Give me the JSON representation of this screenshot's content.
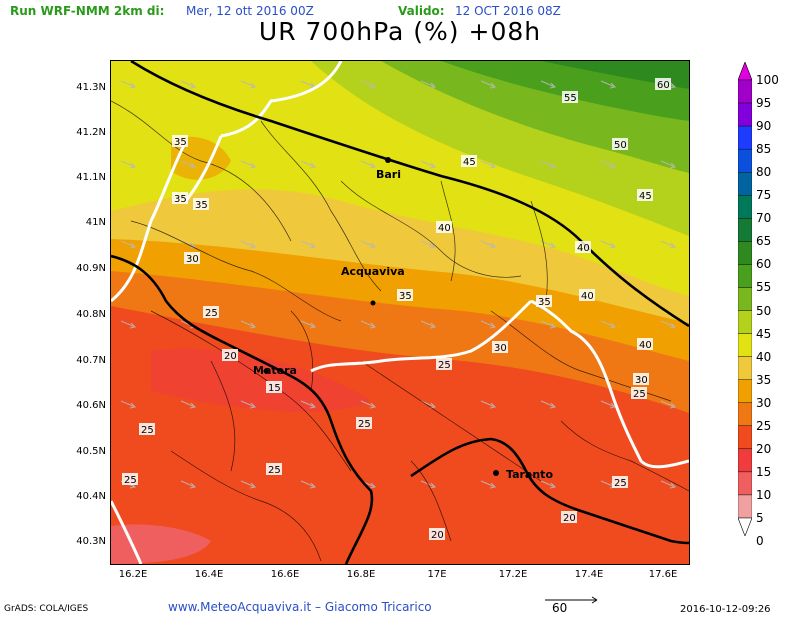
{
  "header": {
    "run_label": "Run WRF-NMM 2km di:",
    "run_date": "Mer, 12 ott 2016 00Z",
    "valid_label": "Valido:",
    "valid_date": "12 OCT 2016 08Z",
    "title": "UR 700hPa (%) +08h"
  },
  "axes": {
    "lat_labels": [
      "41.3N",
      "41.2N",
      "41.1N",
      "41N",
      "40.9N",
      "40.8N",
      "40.7N",
      "40.6N",
      "40.5N",
      "40.4N",
      "40.3N"
    ],
    "lon_labels": [
      "16.2E",
      "16.4E",
      "16.6E",
      "16.8E",
      "17E",
      "17.2E",
      "17.4E",
      "17.6E"
    ]
  },
  "colorbar": {
    "labels": [
      "100",
      "95",
      "90",
      "85",
      "80",
      "75",
      "70",
      "65",
      "60",
      "55",
      "50",
      "45",
      "40",
      "35",
      "30",
      "25",
      "20",
      "15",
      "10",
      "5",
      "0"
    ],
    "colors": [
      "#e200e2",
      "#a000c8",
      "#8200dc",
      "#1e3cff",
      "#0a50dc",
      "#0064a0",
      "#00785a",
      "#157a36",
      "#2e8a1e",
      "#4aa01c",
      "#78b81e",
      "#b4d21c",
      "#e1e114",
      "#f0c83c",
      "#f0a000",
      "#f07814",
      "#f04b1e",
      "#f03c3c",
      "#f05f5f",
      "#f0a0a0",
      "#ffffff"
    ]
  },
  "map": {
    "places": [
      "Bari",
      "Acquaviva",
      "Matera",
      "Taranto"
    ],
    "contour_labels": [
      "60",
      "55",
      "50",
      "45",
      "45",
      "40",
      "40",
      "40",
      "40",
      "35",
      "35",
      "35",
      "35",
      "35",
      "30",
      "30",
      "30",
      "25",
      "25",
      "25",
      "25",
      "25",
      "25",
      "25",
      "25",
      "20",
      "20",
      "20",
      "15"
    ]
  },
  "footer": {
    "left": "GrADS: COLA/IGES",
    "center": "www.MeteoAcquaviva.it  –  Giacomo Tricarico",
    "wind_ref": "60",
    "timestamp": "2016-10-12-09:26"
  }
}
